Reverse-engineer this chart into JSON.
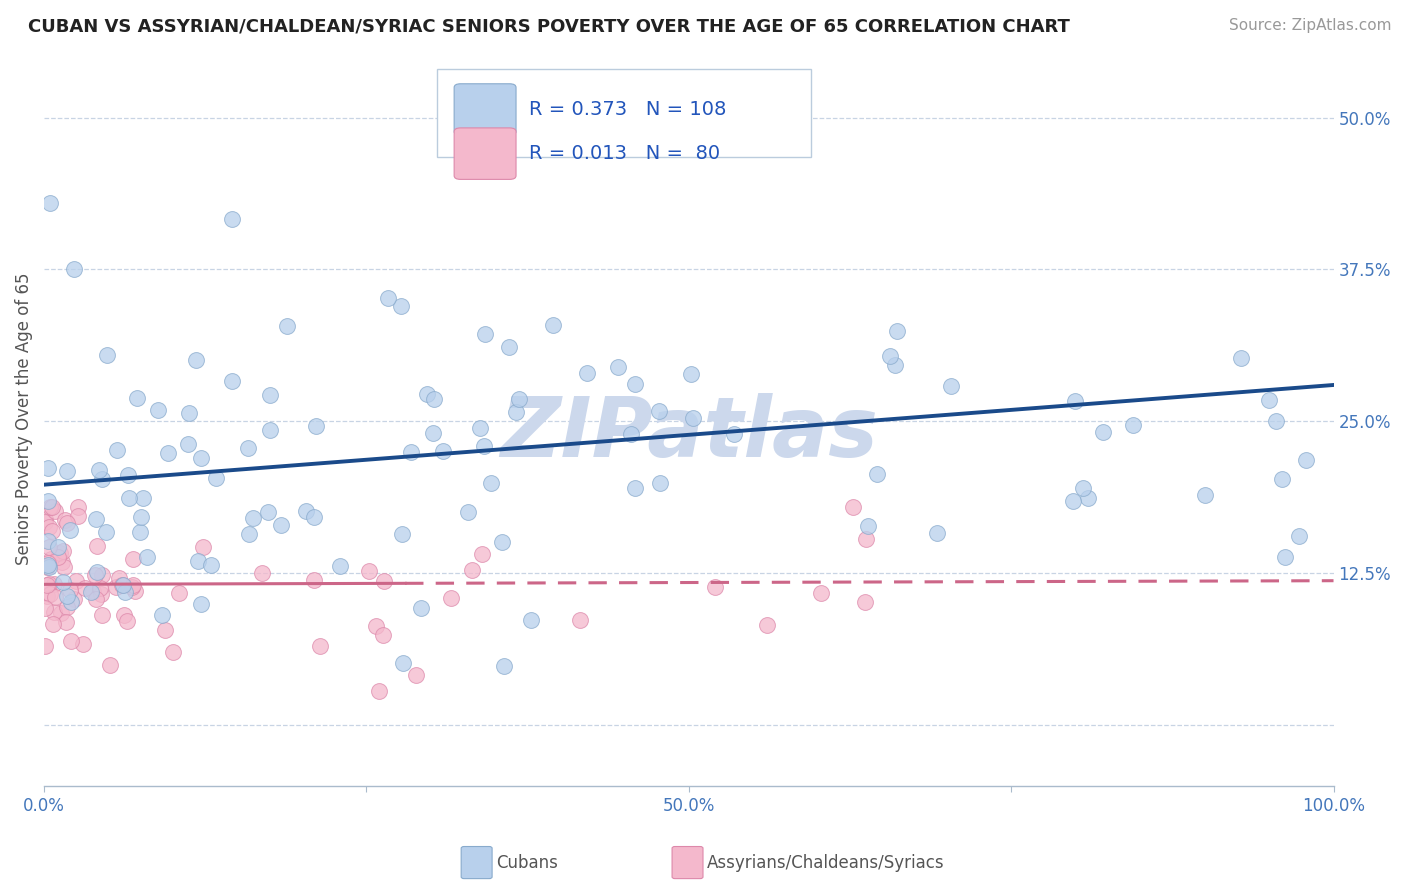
{
  "title": "CUBAN VS ASSYRIAN/CHALDEAN/SYRIAC SENIORS POVERTY OVER THE AGE OF 65 CORRELATION CHART",
  "source": "Source: ZipAtlas.com",
  "ylabel": "Seniors Poverty Over the Age of 65",
  "xlim": [
    0.0,
    100.0
  ],
  "ylim": [
    -0.05,
    0.555
  ],
  "yticks": [
    0.0,
    0.125,
    0.25,
    0.375,
    0.5
  ],
  "ytick_labels": [
    "",
    "12.5%",
    "25.0%",
    "37.5%",
    "50.0%"
  ],
  "xtick_labels": [
    "0.0%",
    "",
    "50.0%",
    "",
    "100.0%"
  ],
  "watermark": "ZIPatlas",
  "watermark_color": "#ccd8ec",
  "background_color": "#ffffff",
  "grid_color": "#c8d4e4",
  "series": [
    {
      "name": "Cubans",
      "R": 0.373,
      "N": 108,
      "color": "#b8d0ec",
      "edge_color": "#88aacc",
      "trend_color": "#1a4a8a",
      "trend_intercept": 0.198,
      "trend_slope": 0.00082
    },
    {
      "name": "Assyrians/Chaldeans/Syriacs",
      "R": 0.013,
      "N": 80,
      "color": "#f4b8cc",
      "edge_color": "#dd88aa",
      "trend_color": "#cc6688",
      "trend_intercept": 0.116,
      "trend_slope": 3e-05,
      "trend_solid_end": 28
    }
  ],
  "legend_R_color": "#2255bb",
  "title_fontsize": 13,
  "axis_label_fontsize": 12,
  "tick_fontsize": 12,
  "legend_fontsize": 14,
  "source_fontsize": 11
}
